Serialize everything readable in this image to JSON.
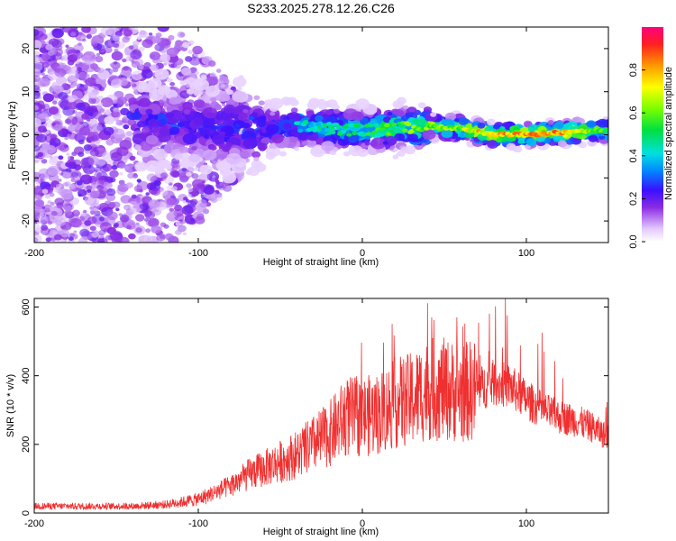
{
  "title": "S233.2025.278.12.26.C26",
  "colors": {
    "snr_line": "#f03030",
    "blob_light": "#d9b8ff",
    "blob_dark": "#7a1ef0",
    "ridge_green": "#2edc2e",
    "ridge_cyan": "#00d0e0",
    "ridge_red": "#ff2a2a",
    "ridge_yellow": "#e8ff30"
  },
  "chart_data": [
    {
      "type": "heatmap",
      "title": "S233.2025.278.12.26.C26",
      "xlabel": "Height of straight line (km)",
      "ylabel": "Frequency (Hz)",
      "xlim": [
        -200,
        150
      ],
      "ylim": [
        -25,
        25
      ],
      "xticks": [
        "-200",
        "-100",
        "0",
        "100"
      ],
      "xtick_values": [
        -200,
        -100,
        0,
        100
      ],
      "yticks": [
        "-20",
        "-10",
        "0",
        "10",
        "20"
      ],
      "ytick_values": [
        -20,
        -10,
        0,
        10,
        20
      ],
      "grid": false,
      "colorbar": {
        "label": "Normalized spectral amplitude",
        "range": [
          0.0,
          1.0
        ],
        "ticks": [
          "0.0",
          "0.2",
          "0.4",
          "0.6",
          "0.8"
        ],
        "tick_values": [
          0.0,
          0.2,
          0.4,
          0.6,
          0.8
        ]
      },
      "ridge": {
        "description_points_x": [
          -130,
          -100,
          -80,
          -60,
          -40,
          -20,
          0,
          20,
          40,
          60,
          80,
          100,
          120,
          150
        ],
        "center_freq": [
          3.0,
          2.0,
          1.5,
          1.5,
          2.0,
          1.5,
          1.0,
          1.5,
          2.0,
          1.5,
          0.0,
          0.0,
          0.5,
          1.0
        ],
        "peak_amplitude": [
          0.3,
          0.3,
          0.35,
          0.4,
          0.45,
          0.5,
          0.55,
          0.6,
          0.65,
          0.7,
          0.9,
          0.85,
          0.9,
          0.6
        ]
      }
    },
    {
      "type": "line",
      "xlabel": "Height of straight line (km)",
      "ylabel": "SNR (10 * v/v)",
      "xlim": [
        -200,
        150
      ],
      "ylim": [
        0,
        625
      ],
      "xticks": [
        "-200",
        "-100",
        "0",
        "100"
      ],
      "xtick_values": [
        -200,
        -100,
        0,
        100
      ],
      "yticks": [
        "0",
        "200",
        "400",
        "600"
      ],
      "ytick_values": [
        0,
        200,
        400,
        600
      ],
      "grid": false,
      "series": [
        {
          "name": "SNR",
          "x": [
            -200,
            -180,
            -160,
            -140,
            -120,
            -100,
            -90,
            -80,
            -70,
            -60,
            -50,
            -40,
            -30,
            -20,
            -10,
            0,
            10,
            20,
            30,
            40,
            50,
            60,
            70,
            80,
            90,
            100,
            110,
            120,
            130,
            140,
            150
          ],
          "values": [
            20,
            20,
            20,
            20,
            25,
            40,
            60,
            80,
            110,
            130,
            150,
            170,
            200,
            230,
            280,
            280,
            290,
            320,
            330,
            360,
            360,
            350,
            360,
            380,
            370,
            330,
            300,
            280,
            270,
            250,
            220
          ]
        }
      ]
    }
  ]
}
